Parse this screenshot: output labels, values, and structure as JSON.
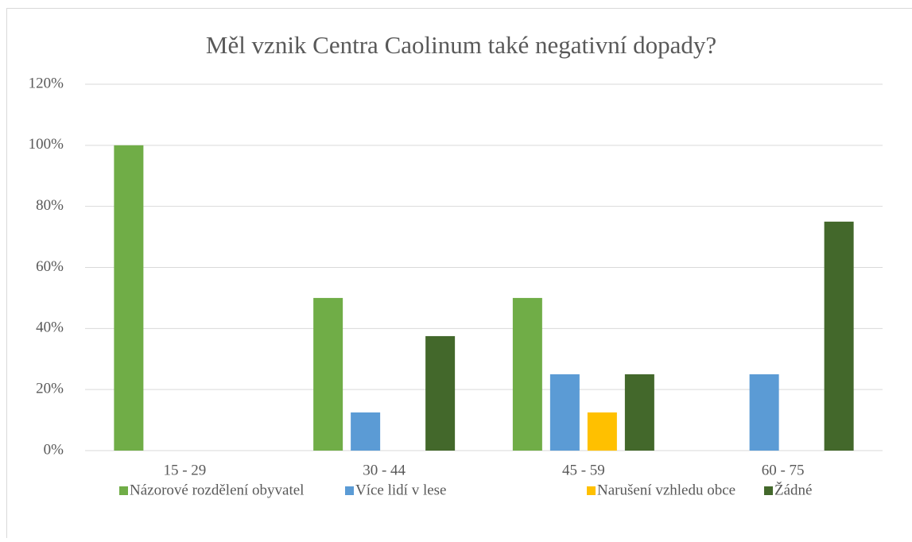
{
  "chart_data": {
    "type": "bar",
    "title": "Měl vznik Centra Caolinum také negativní dopady?",
    "categories": [
      "15 - 29",
      "30 - 44",
      "45 - 59",
      "60 - 75"
    ],
    "series": [
      {
        "name": "Názorové rozdělení obyvatel",
        "color": "#70ad47",
        "values": [
          100,
          50,
          50,
          0
        ]
      },
      {
        "name": "Více lidí v lese",
        "color": "#5b9bd5",
        "values": [
          0,
          12.5,
          25,
          25
        ]
      },
      {
        "name": "Narušení vzhledu obce",
        "color": "#ffc000",
        "values": [
          0,
          0,
          12.5,
          0
        ]
      },
      {
        "name": "Žádné",
        "color": "#43682b",
        "values": [
          0,
          37.5,
          25,
          75
        ]
      }
    ],
    "ylim": [
      0,
      120
    ],
    "yticks": [
      {
        "value": 0,
        "label": "0%"
      },
      {
        "value": 20,
        "label": "20%"
      },
      {
        "value": 40,
        "label": "40%"
      },
      {
        "value": 60,
        "label": "60%"
      },
      {
        "value": 80,
        "label": "80%"
      },
      {
        "value": 100,
        "label": "100%"
      },
      {
        "value": 120,
        "label": "120%"
      }
    ],
    "grid": true,
    "legend": "bottom"
  }
}
